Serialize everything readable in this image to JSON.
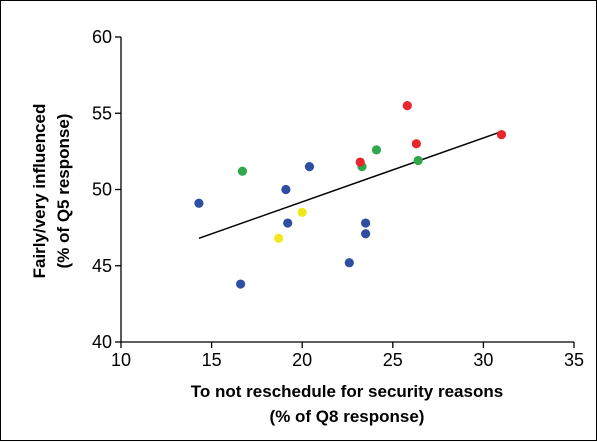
{
  "chart_data": {
    "type": "scatter",
    "title": "",
    "xlabel_line1": "To not reschedule for security reasons",
    "xlabel_line2": "(% of Q8 response)",
    "ylabel_line1": "Fairly/very influenced",
    "ylabel_line2": "(% of Q5 response)",
    "xlim": [
      10,
      35
    ],
    "ylim": [
      40,
      60
    ],
    "x_ticks": [
      10,
      15,
      20,
      25,
      30,
      35
    ],
    "y_ticks": [
      40,
      45,
      50,
      55,
      60
    ],
    "grid": false,
    "legend": "none",
    "points": [
      {
        "x": 14.3,
        "y": 49.1,
        "color": "#2e4ea1"
      },
      {
        "x": 16.6,
        "y": 43.8,
        "color": "#2e4ea1"
      },
      {
        "x": 19.1,
        "y": 50.0,
        "color": "#2e4ea1"
      },
      {
        "x": 19.2,
        "y": 47.8,
        "color": "#2e4ea1"
      },
      {
        "x": 20.4,
        "y": 51.5,
        "color": "#2e4ea1"
      },
      {
        "x": 22.6,
        "y": 45.2,
        "color": "#2e4ea1"
      },
      {
        "x": 23.5,
        "y": 47.8,
        "color": "#2e4ea1"
      },
      {
        "x": 23.5,
        "y": 47.1,
        "color": "#2e4ea1"
      },
      {
        "x": 16.7,
        "y": 51.2,
        "color": "#2ea84a"
      },
      {
        "x": 23.3,
        "y": 51.5,
        "color": "#2ea84a"
      },
      {
        "x": 24.1,
        "y": 52.6,
        "color": "#2ea84a"
      },
      {
        "x": 26.4,
        "y": 51.9,
        "color": "#2ea84a"
      },
      {
        "x": 18.7,
        "y": 46.8,
        "color": "#f0e81c"
      },
      {
        "x": 20.0,
        "y": 48.5,
        "color": "#f0e81c"
      },
      {
        "x": 23.2,
        "y": 51.8,
        "color": "#e8262b"
      },
      {
        "x": 25.8,
        "y": 55.5,
        "color": "#e8262b"
      },
      {
        "x": 26.3,
        "y": 53.0,
        "color": "#e8262b"
      },
      {
        "x": 31.0,
        "y": 53.6,
        "color": "#e8262b"
      }
    ],
    "trendline": {
      "x": [
        14.3,
        31.0
      ],
      "y": [
        46.8,
        53.8
      ],
      "color": "#000000"
    }
  }
}
